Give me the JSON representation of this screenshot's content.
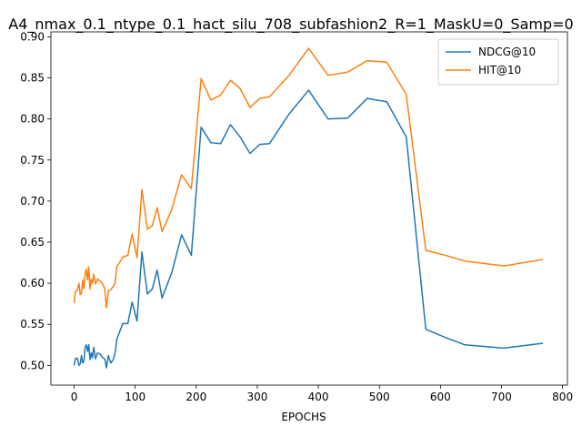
{
  "chart_data": {
    "type": "line",
    "title": "A4_nmax_0.1_ntype_0.1_hact_silu_708_subfashion2_R=1_MaskU=0_Samp=0",
    "xlabel": "EPOCHS",
    "ylabel": "",
    "xlim": [
      -38,
      808
    ],
    "ylim": [
      0.476,
      0.906
    ],
    "xticks": [
      0,
      100,
      200,
      300,
      400,
      500,
      600,
      700,
      800
    ],
    "yticks": [
      0.5,
      0.55,
      0.6,
      0.65,
      0.7,
      0.75,
      0.8,
      0.85,
      0.9
    ],
    "grid": false,
    "legend": "top-right",
    "series": [
      {
        "name": "NDCG@10",
        "color": "#1f77b4",
        "points": [
          [
            0,
            0.5
          ],
          [
            2,
            0.508
          ],
          [
            5,
            0.509
          ],
          [
            8,
            0.5
          ],
          [
            10,
            0.502
          ],
          [
            12,
            0.512
          ],
          [
            14,
            0.503
          ],
          [
            16,
            0.505
          ],
          [
            18,
            0.522
          ],
          [
            20,
            0.525
          ],
          [
            22,
            0.517
          ],
          [
            24,
            0.525
          ],
          [
            26,
            0.507
          ],
          [
            28,
            0.515
          ],
          [
            30,
            0.509
          ],
          [
            32,
            0.522
          ],
          [
            35,
            0.508
          ],
          [
            38,
            0.515
          ],
          [
            42,
            0.514
          ],
          [
            46,
            0.51
          ],
          [
            50,
            0.508
          ],
          [
            53,
            0.497
          ],
          [
            56,
            0.512
          ],
          [
            60,
            0.503
          ],
          [
            64,
            0.507
          ],
          [
            67,
            0.515
          ],
          [
            70,
            0.532
          ],
          [
            75,
            0.542
          ],
          [
            80,
            0.551
          ],
          [
            88,
            0.551
          ],
          [
            95,
            0.577
          ],
          [
            103,
            0.554
          ],
          [
            111,
            0.638
          ],
          [
            120,
            0.587
          ],
          [
            128,
            0.593
          ],
          [
            136,
            0.616
          ],
          [
            144,
            0.582
          ],
          [
            160,
            0.613
          ],
          [
            176,
            0.659
          ],
          [
            192,
            0.634
          ],
          [
            208,
            0.79
          ],
          [
            224,
            0.771
          ],
          [
            240,
            0.77
          ],
          [
            256,
            0.793
          ],
          [
            272,
            0.778
          ],
          [
            288,
            0.758
          ],
          [
            304,
            0.769
          ],
          [
            320,
            0.77
          ],
          [
            352,
            0.806
          ],
          [
            384,
            0.835
          ],
          [
            416,
            0.8
          ],
          [
            448,
            0.801
          ],
          [
            480,
            0.825
          ],
          [
            512,
            0.821
          ],
          [
            544,
            0.778
          ],
          [
            576,
            0.544
          ],
          [
            608,
            0.534
          ],
          [
            640,
            0.525
          ],
          [
            704,
            0.521
          ],
          [
            768,
            0.527
          ]
        ]
      },
      {
        "name": "HIT@10",
        "color": "#ff7f0e",
        "points": [
          [
            0,
            0.576
          ],
          [
            2,
            0.59
          ],
          [
            5,
            0.591
          ],
          [
            8,
            0.6
          ],
          [
            10,
            0.586
          ],
          [
            12,
            0.588
          ],
          [
            14,
            0.604
          ],
          [
            16,
            0.593
          ],
          [
            18,
            0.611
          ],
          [
            20,
            0.617
          ],
          [
            22,
            0.604
          ],
          [
            24,
            0.62
          ],
          [
            26,
            0.593
          ],
          [
            28,
            0.605
          ],
          [
            30,
            0.6
          ],
          [
            32,
            0.611
          ],
          [
            35,
            0.599
          ],
          [
            38,
            0.605
          ],
          [
            42,
            0.603
          ],
          [
            46,
            0.6
          ],
          [
            50,
            0.594
          ],
          [
            53,
            0.57
          ],
          [
            56,
            0.591
          ],
          [
            60,
            0.592
          ],
          [
            64,
            0.596
          ],
          [
            67,
            0.6
          ],
          [
            70,
            0.62
          ],
          [
            75,
            0.626
          ],
          [
            80,
            0.632
          ],
          [
            88,
            0.634
          ],
          [
            95,
            0.66
          ],
          [
            103,
            0.631
          ],
          [
            111,
            0.714
          ],
          [
            120,
            0.666
          ],
          [
            128,
            0.67
          ],
          [
            136,
            0.692
          ],
          [
            144,
            0.663
          ],
          [
            160,
            0.69
          ],
          [
            176,
            0.732
          ],
          [
            192,
            0.715
          ],
          [
            208,
            0.849
          ],
          [
            224,
            0.823
          ],
          [
            240,
            0.829
          ],
          [
            256,
            0.847
          ],
          [
            272,
            0.837
          ],
          [
            288,
            0.814
          ],
          [
            304,
            0.825
          ],
          [
            320,
            0.827
          ],
          [
            352,
            0.853
          ],
          [
            384,
            0.886
          ],
          [
            416,
            0.853
          ],
          [
            448,
            0.857
          ],
          [
            480,
            0.871
          ],
          [
            512,
            0.869
          ],
          [
            544,
            0.83
          ],
          [
            576,
            0.64
          ],
          [
            608,
            0.634
          ],
          [
            640,
            0.627
          ],
          [
            704,
            0.621
          ],
          [
            768,
            0.629
          ]
        ]
      }
    ]
  }
}
